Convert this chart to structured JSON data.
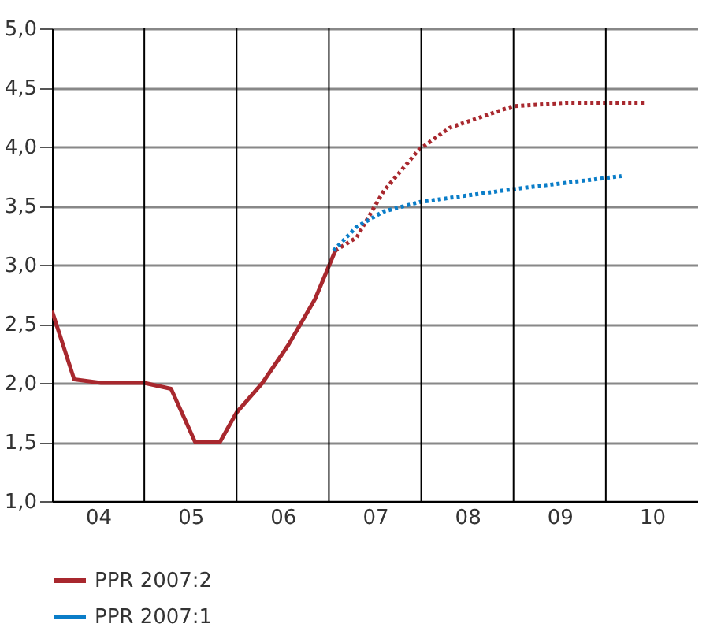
{
  "chart_data": {
    "type": "line",
    "legend": "bottom left",
    "grid": true,
    "xlim": [
      3.5,
      10.5
    ],
    "xticks": [
      {
        "value": 4.5,
        "label": null
      },
      {
        "value": 5.5,
        "label": null
      },
      {
        "value": 6.5,
        "label": null
      },
      {
        "value": 7.5,
        "label": null
      },
      {
        "value": 8.5,
        "label": null
      },
      {
        "value": 9.5,
        "label": null
      },
      {
        "value": 4,
        "label": "04"
      },
      {
        "value": 5,
        "label": "05"
      },
      {
        "value": 6,
        "label": "06"
      },
      {
        "value": 7,
        "label": "07"
      },
      {
        "value": 8,
        "label": "08"
      },
      {
        "value": 9,
        "label": "09"
      },
      {
        "value": 10,
        "label": "10"
      }
    ],
    "ylim": [
      1,
      5
    ],
    "yticks": [
      {
        "value": 1,
        "label": "1,0"
      },
      {
        "value": 1.5,
        "label": "1,5"
      },
      {
        "value": 2,
        "label": "2,0"
      },
      {
        "value": 2.5,
        "label": "2,5"
      },
      {
        "value": 3,
        "label": "3,0"
      },
      {
        "value": 3.5,
        "label": "3,5"
      },
      {
        "value": 4,
        "label": "4,0"
      },
      {
        "value": 4.5,
        "label": "4,5"
      },
      {
        "value": 5,
        "label": "5,0"
      }
    ],
    "series": [
      {
        "name": "PPR 2007:2",
        "color": "#a8282e",
        "line_style": "solid",
        "x": [
          3.5,
          3.74,
          4.03,
          4.5,
          4.79,
          5.05,
          5.32,
          5.5,
          5.78,
          6.06,
          6.35,
          6.57
        ],
        "values": [
          2.61,
          2.03,
          2.0,
          2.0,
          1.95,
          1.5,
          1.5,
          1.75,
          2.0,
          2.32,
          2.71,
          3.12
        ]
      },
      {
        "color": "#a8282e",
        "line_style": "dotted",
        "x": [
          6.57,
          6.8,
          7.09,
          7.47,
          7.81,
          8.49,
          9.06,
          9.93
        ],
        "values": [
          3.12,
          3.23,
          3.62,
          3.97,
          4.16,
          4.34,
          4.37,
          4.37
        ]
      },
      {
        "name": "PPR 2007:1",
        "color": "#0a7dc8",
        "line_style": "dotted",
        "x": [
          6.55,
          6.8,
          7.09,
          7.48,
          8.5,
          9.67
        ],
        "values": [
          3.12,
          3.32,
          3.45,
          3.53,
          3.64,
          3.75
        ]
      }
    ]
  }
}
